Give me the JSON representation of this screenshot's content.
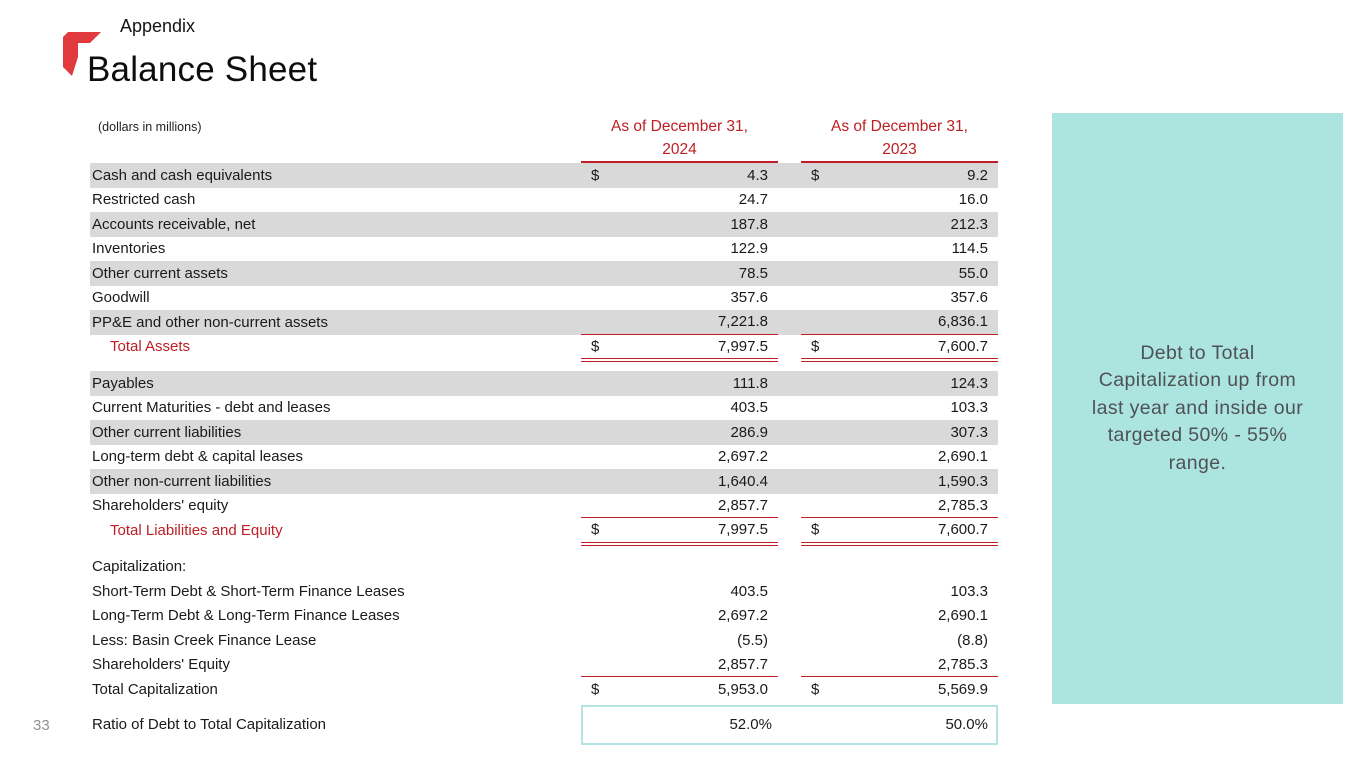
{
  "slide": {
    "eyebrow": "Appendix",
    "title": "Balance Sheet",
    "page_number": "33"
  },
  "colors": {
    "accent_red": "#be1e24",
    "row_shade": "#d9d9d9",
    "callout_bg": "#ace4e0",
    "ratio_box_border": "#b5e3e3"
  },
  "table": {
    "units_note": "(dollars in millions)",
    "columns": [
      {
        "line1": "As of December 31,",
        "line2": "2024"
      },
      {
        "line1": "As of December 31,",
        "line2": "2023"
      }
    ],
    "sections": [
      {
        "rows": [
          {
            "label": "Cash and cash equivalents",
            "dollar": true,
            "shaded": true,
            "v2024": "4.3",
            "v2023": "9.2"
          },
          {
            "label": "Restricted cash",
            "v2024": "24.7",
            "v2023": "16.0"
          },
          {
            "label": "Accounts receivable, net",
            "shaded": true,
            "v2024": "187.8",
            "v2023": "212.3"
          },
          {
            "label": "Inventories",
            "v2024": "122.9",
            "v2023": "114.5"
          },
          {
            "label": "Other current assets",
            "shaded": true,
            "v2024": "78.5",
            "v2023": "55.0"
          },
          {
            "label": "Goodwill",
            "v2024": "357.6",
            "v2023": "357.6"
          },
          {
            "label": "PP&E and other non-current assets",
            "shaded": true,
            "underline": "single",
            "v2024": "7,221.8",
            "v2023": "6,836.1"
          },
          {
            "label": "Total Assets",
            "total": true,
            "dollar": true,
            "underline": "double",
            "v2024": "7,997.5",
            "v2023": "7,600.7"
          }
        ]
      },
      {
        "rows": [
          {
            "label": "Payables",
            "shaded": true,
            "v2024": "111.8",
            "v2023": "124.3"
          },
          {
            "label": "Current Maturities - debt and leases",
            "v2024": "403.5",
            "v2023": "103.3"
          },
          {
            "label": "Other current liabilities",
            "shaded": true,
            "v2024": "286.9",
            "v2023": "307.3"
          },
          {
            "label": "Long-term debt & capital leases",
            "v2024": "2,697.2",
            "v2023": "2,690.1"
          },
          {
            "label": "Other non-current liabilities",
            "shaded": true,
            "v2024": "1,640.4",
            "v2023": "1,590.3"
          },
          {
            "label": "Shareholders' equity",
            "underline": "single",
            "v2024": "2,857.7",
            "v2023": "2,785.3"
          },
          {
            "label": "Total Liabilities and Equity",
            "total": true,
            "dollar": true,
            "underline": "double",
            "v2024": "7,997.5",
            "v2023": "7,600.7"
          }
        ]
      },
      {
        "rows": [
          {
            "label": "Capitalization:",
            "v2024": "",
            "v2023": ""
          },
          {
            "label": "Short-Term Debt & Short-Term Finance Leases",
            "v2024": "403.5",
            "v2023": "103.3"
          },
          {
            "label": "Long-Term Debt & Long-Term Finance Leases",
            "v2024": "2,697.2",
            "v2023": "2,690.1"
          },
          {
            "label": "Less: Basin Creek Finance Lease",
            "v2024": "(5.5)",
            "v2023": "(8.8)"
          },
          {
            "label": "Shareholders' Equity",
            "underline": "single",
            "v2024": "2,857.7",
            "v2023": "2,785.3"
          },
          {
            "label": "Total Capitalization",
            "dollar": true,
            "v2024": "5,953.0",
            "v2023": "5,569.9"
          }
        ]
      }
    ],
    "ratio_row": {
      "label": "Ratio of Debt to Total Capitalization",
      "v2024": "52.0%",
      "v2023": "50.0%"
    }
  },
  "callout": {
    "text": "Debt to Total Capitalization up from last year and inside our targeted 50% - 55% range."
  }
}
